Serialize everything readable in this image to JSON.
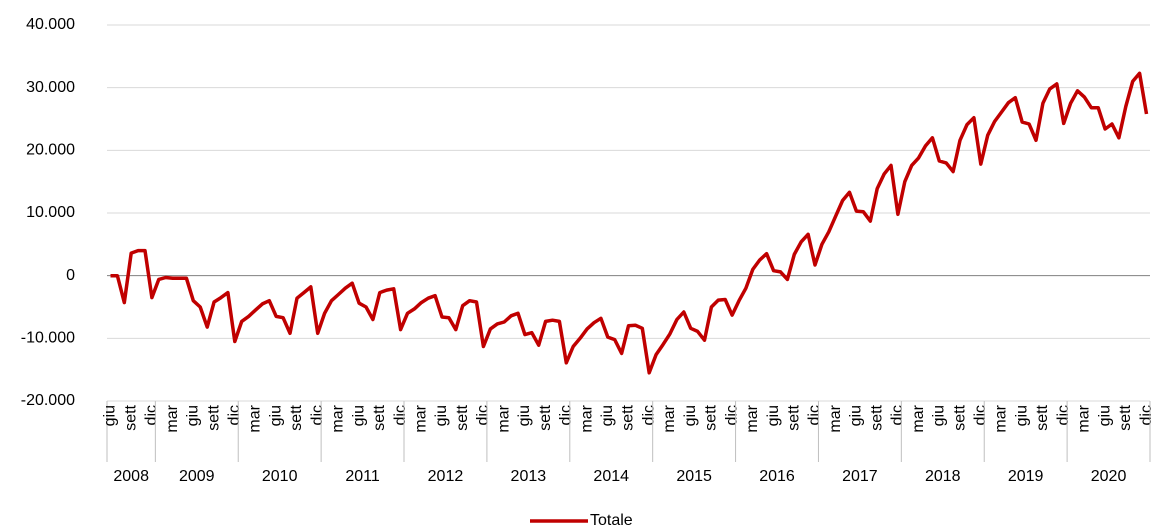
{
  "chart_data": {
    "type": "line",
    "categories": [
      "giu",
      null,
      null,
      "sett",
      null,
      null,
      "dic",
      null,
      null,
      "mar",
      null,
      null,
      "giu",
      null,
      null,
      "sett",
      null,
      null,
      "dic",
      null,
      null,
      "mar",
      null,
      null,
      "giu",
      null,
      null,
      "sett",
      null,
      null,
      "dic",
      null,
      null,
      "mar",
      null,
      null,
      "giu",
      null,
      null,
      "sett",
      null,
      null,
      "dic",
      null,
      null,
      "mar",
      null,
      null,
      "giu",
      null,
      null,
      "sett",
      null,
      null,
      "dic",
      null,
      null,
      "mar",
      null,
      null,
      "giu",
      null,
      null,
      "sett",
      null,
      null,
      "dic",
      null,
      null,
      "mar",
      null,
      null,
      "giu",
      null,
      null,
      "sett",
      null,
      null,
      "dic",
      null,
      null,
      "mar",
      null,
      null,
      "giu",
      null,
      null,
      "sett",
      null,
      null,
      "dic",
      null,
      null,
      "mar",
      null,
      null,
      "giu",
      null,
      null,
      "sett",
      null,
      null,
      "dic",
      null,
      null,
      "mar",
      null,
      null,
      "giu",
      null,
      null,
      "sett",
      null,
      null,
      "dic",
      null,
      null,
      "mar",
      null,
      null,
      "giu",
      null,
      null,
      "sett",
      null,
      null,
      "dic",
      null,
      null,
      "mar",
      null,
      null,
      "giu",
      null,
      null,
      "sett",
      null,
      null,
      "dic",
      null,
      null,
      "mar",
      null,
      null,
      "giu",
      null,
      null,
      "sett",
      null,
      null,
      "dic"
    ],
    "year_labels": [
      "2008",
      "2009",
      "2010",
      "2011",
      "2012",
      "2013",
      "2014",
      "2015",
      "2016",
      "2017",
      "2018",
      "2019",
      "2020"
    ],
    "series": [
      {
        "name": "Totale",
        "color": "#c00000",
        "values": [
          0,
          0,
          -4300,
          3600,
          4000,
          4000,
          -3500,
          -600,
          -300,
          -400,
          -400,
          -400,
          -4000,
          -5000,
          -8200,
          -4200,
          -3500,
          -2700,
          -10500,
          -7300,
          -6500,
          -5500,
          -4500,
          -4000,
          -6500,
          -6700,
          -9200,
          -3600,
          -2700,
          -1800,
          -9200,
          -6000,
          -4000,
          -3000,
          -2000,
          -1200,
          -4400,
          -5000,
          -7000,
          -2700,
          -2300,
          -2100,
          -8600,
          -6000,
          -5300,
          -4300,
          -3600,
          -3200,
          -6600,
          -6700,
          -8600,
          -4800,
          -4000,
          -4200,
          -11300,
          -8500,
          -7700,
          -7400,
          -6400,
          -6000,
          -9400,
          -9100,
          -11100,
          -7300,
          -7100,
          -7300,
          -13900,
          -11300,
          -10000,
          -8500,
          -7500,
          -6800,
          -9800,
          -10200,
          -12400,
          -8000,
          -7900,
          -8400,
          -15500,
          -12600,
          -11000,
          -9300,
          -7000,
          -5800,
          -8400,
          -8900,
          -10300,
          -5000,
          -3900,
          -3800,
          -6300,
          -4000,
          -2000,
          1000,
          2500,
          3500,
          800,
          600,
          -600,
          3400,
          5400,
          6600,
          1700,
          5000,
          7000,
          9500,
          12000,
          13300,
          10300,
          10200,
          8700,
          13900,
          16200,
          17600,
          9800,
          15000,
          17600,
          18800,
          20700,
          22000,
          18300,
          18000,
          16600,
          21600,
          24100,
          25200,
          17800,
          22400,
          24600,
          26100,
          27600,
          28400,
          24500,
          24200,
          21600,
          27500,
          29800,
          30600,
          24300,
          27500,
          29500,
          28500,
          26800,
          26800,
          23400,
          24200,
          22000,
          27000,
          31000,
          32300,
          25800
        ]
      }
    ],
    "ylim": [
      -20000,
      40000
    ],
    "yticks": [
      {
        "value": -20000,
        "label": "-20.000"
      },
      {
        "value": -10000,
        "label": "-10.000"
      },
      0,
      {
        "value": 10000,
        "label": "10.000"
      },
      {
        "value": 20000,
        "label": "20.000"
      },
      {
        "value": 30000,
        "label": "30.000"
      },
      {
        "value": 40000,
        "label": "40.000"
      }
    ],
    "grid": true,
    "legend": "bottom"
  }
}
